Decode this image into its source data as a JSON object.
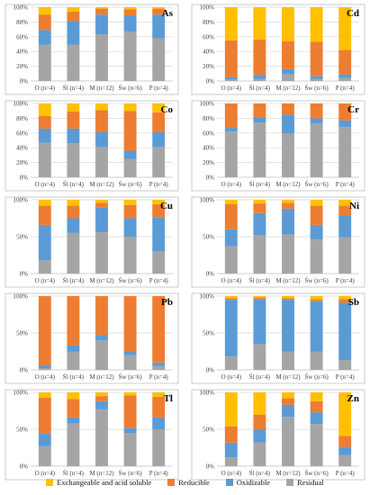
{
  "series_names": [
    "Exchangeable and acid soluble",
    "Reducible",
    "Oxidizable",
    "Residual"
  ],
  "colors": {
    "Exchangeable and acid soluble": "#FFC000",
    "Reducible": "#ED7D31",
    "Oxidizable": "#5B9BD5",
    "Residual": "#A5A5A5",
    "grid": "#D9D9D9",
    "axis": "#BFBFBF",
    "text": "#404040"
  },
  "chart_data": [
    {
      "type": "bar",
      "stacked": true,
      "element": "As",
      "categories": [
        "O (n=4)",
        "Śl (n=4)",
        "M (n=12)",
        "Św (n=6)",
        "P (n=4)"
      ],
      "ytick_labels": [
        "0%",
        "20%",
        "40%",
        "60%",
        "80%",
        "100%"
      ],
      "ylim": [
        0,
        100
      ],
      "series": [
        {
          "name": "Residual",
          "values": [
            49,
            49,
            63,
            67,
            58
          ]
        },
        {
          "name": "Oxidizable",
          "values": [
            20,
            32,
            27,
            22,
            32
          ]
        },
        {
          "name": "Reducible",
          "values": [
            21,
            13,
            8,
            8,
            8
          ]
        },
        {
          "name": "Exchangeable and acid soluble",
          "values": [
            10,
            6,
            2,
            3,
            2
          ]
        }
      ]
    },
    {
      "type": "bar",
      "stacked": true,
      "element": "Cd",
      "categories": [
        "O (n=4)",
        "Śl (n=4)",
        "M (n=12)",
        "Św (n=6)",
        "P (n=4)"
      ],
      "ytick_labels": [
        "0%",
        "20%",
        "40%",
        "60%",
        "80%",
        "100%"
      ],
      "ylim": [
        0,
        100
      ],
      "series": [
        {
          "name": "Residual",
          "values": [
            2,
            3,
            9,
            3,
            4
          ]
        },
        {
          "name": "Oxidizable",
          "values": [
            3,
            5,
            7,
            4,
            5
          ]
        },
        {
          "name": "Reducible",
          "values": [
            50,
            48,
            38,
            46,
            33
          ]
        },
        {
          "name": "Exchangeable and acid soluble",
          "values": [
            45,
            44,
            46,
            47,
            58
          ]
        }
      ]
    },
    {
      "type": "bar",
      "stacked": true,
      "element": "Co",
      "categories": [
        "O (n=4)",
        "Śl (n=4)",
        "M (n=12)",
        "Św (n=6)",
        "P (n=4)"
      ],
      "ytick_labels": [
        "0%",
        "20%",
        "40%",
        "60%",
        "80%",
        "100%"
      ],
      "ylim": [
        0,
        100
      ],
      "series": [
        {
          "name": "Residual",
          "values": [
            47,
            46,
            41,
            25,
            41
          ]
        },
        {
          "name": "Oxidizable",
          "values": [
            19,
            20,
            20,
            11,
            20
          ]
        },
        {
          "name": "Reducible",
          "values": [
            17,
            23,
            30,
            54,
            27
          ]
        },
        {
          "name": "Exchangeable and acid soluble",
          "values": [
            17,
            11,
            9,
            10,
            12
          ]
        }
      ]
    },
    {
      "type": "bar",
      "stacked": true,
      "element": "Cr",
      "categories": [
        "O (n=4)",
        "Śl (n=4)",
        "M (n=12)",
        "Św (n=6)",
        "P (n=4)"
      ],
      "ytick_labels": [
        "0%",
        "20%",
        "40%",
        "60%",
        "80%",
        "100%"
      ],
      "ylim": [
        0,
        100
      ],
      "series": [
        {
          "name": "Residual",
          "values": [
            62,
            74,
            59,
            73,
            68
          ]
        },
        {
          "name": "Oxidizable",
          "values": [
            5,
            7,
            26,
            7,
            9
          ]
        },
        {
          "name": "Reducible",
          "values": [
            33,
            19,
            15,
            20,
            23
          ]
        },
        {
          "name": "Exchangeable and acid soluble",
          "values": [
            0,
            0,
            0,
            0,
            0
          ]
        }
      ]
    },
    {
      "type": "bar",
      "stacked": true,
      "element": "Cu",
      "categories": [
        "O (n=4)",
        "Śl (n=4)",
        "M (n=12)",
        "Św (n=6)",
        "P (n=4)"
      ],
      "ytick_labels": [
        "0%",
        "50%",
        "100%"
      ],
      "ylim": [
        0,
        100
      ],
      "series": [
        {
          "name": "Residual",
          "values": [
            18,
            55,
            56,
            50,
            30
          ]
        },
        {
          "name": "Oxidizable",
          "values": [
            48,
            20,
            34,
            25,
            46
          ]
        },
        {
          "name": "Reducible",
          "values": [
            26,
            17,
            6,
            18,
            18
          ]
        },
        {
          "name": "Exchangeable and acid soluble",
          "values": [
            8,
            8,
            4,
            7,
            6
          ]
        }
      ]
    },
    {
      "type": "bar",
      "stacked": true,
      "element": "Ni",
      "categories": [
        "O (n=4)",
        "Śl (n=4)",
        "M (n=12)",
        "Św (n=6)",
        "P (n=4)"
      ],
      "ytick_labels": [
        "0%",
        "50%",
        "100%"
      ],
      "ylim": [
        0,
        100
      ],
      "series": [
        {
          "name": "Residual",
          "values": [
            37,
            52,
            53,
            46,
            49
          ]
        },
        {
          "name": "Oxidizable",
          "values": [
            23,
            30,
            35,
            20,
            29
          ]
        },
        {
          "name": "Reducible",
          "values": [
            34,
            13,
            8,
            26,
            14
          ]
        },
        {
          "name": "Exchangeable and acid soluble",
          "values": [
            6,
            5,
            4,
            8,
            8
          ]
        }
      ]
    },
    {
      "type": "bar",
      "stacked": true,
      "element": "Pb",
      "categories": [
        "O (n=4)",
        "Śl (n=4)",
        "M (n=12)",
        "Św (n=6)",
        "P (n=4)"
      ],
      "ytick_labels": [
        "0%",
        "50%",
        "100%"
      ],
      "ylim": [
        0,
        100
      ],
      "series": [
        {
          "name": "Residual",
          "values": [
            2,
            25,
            40,
            20,
            5
          ]
        },
        {
          "name": "Oxidizable",
          "values": [
            4,
            8,
            7,
            5,
            5
          ]
        },
        {
          "name": "Reducible",
          "values": [
            94,
            67,
            53,
            75,
            90
          ]
        },
        {
          "name": "Exchangeable and acid soluble",
          "values": [
            0,
            0,
            0,
            0,
            0
          ]
        }
      ]
    },
    {
      "type": "bar",
      "stacked": true,
      "element": "Sb",
      "categories": [
        "O (n=4)",
        "Śl (n=4)",
        "M (n=12)",
        "Św (n=6)",
        "P (n=4)"
      ],
      "ytick_labels": [
        "0%",
        "50%",
        "100%"
      ],
      "ylim": [
        0,
        100
      ],
      "series": [
        {
          "name": "Residual",
          "values": [
            18,
            35,
            25,
            25,
            13
          ]
        },
        {
          "name": "Oxidizable",
          "values": [
            77,
            61,
            70,
            68,
            78
          ]
        },
        {
          "name": "Reducible",
          "values": [
            2,
            2,
            2,
            3,
            5
          ]
        },
        {
          "name": "Exchangeable and acid soluble",
          "values": [
            3,
            2,
            3,
            4,
            4
          ]
        }
      ]
    },
    {
      "type": "bar",
      "stacked": true,
      "element": "Tl",
      "categories": [
        "O (n=4)",
        "Śl (n=4)",
        "M (n=12)",
        "Św (n=6)",
        "P (n=4)"
      ],
      "ytick_labels": [
        "0%",
        "50%",
        "100%"
      ],
      "ylim": [
        0,
        100
      ],
      "series": [
        {
          "name": "Residual",
          "values": [
            27,
            58,
            77,
            45,
            50
          ]
        },
        {
          "name": "Oxidizable",
          "values": [
            17,
            8,
            11,
            7,
            16
          ]
        },
        {
          "name": "Reducible",
          "values": [
            49,
            25,
            7,
            44,
            28
          ]
        },
        {
          "name": "Exchangeable and acid soluble",
          "values": [
            7,
            9,
            5,
            4,
            6
          ]
        }
      ]
    },
    {
      "type": "bar",
      "stacked": true,
      "element": "Zn",
      "categories": [
        "O (n=4)",
        "Śl (n=4)",
        "M (n=12)",
        "Św (n=6)",
        "P (n=4)"
      ],
      "ytick_labels": [
        "0%",
        "50%",
        "100%"
      ],
      "ylim": [
        0,
        100
      ],
      "series": [
        {
          "name": "Residual",
          "values": [
            12,
            32,
            67,
            57,
            15
          ]
        },
        {
          "name": "Oxidizable",
          "values": [
            20,
            18,
            16,
            16,
            11
          ]
        },
        {
          "name": "Reducible",
          "values": [
            22,
            20,
            9,
            15,
            15
          ]
        },
        {
          "name": "Exchangeable and acid soluble",
          "values": [
            46,
            30,
            8,
            12,
            59
          ]
        }
      ]
    }
  ]
}
